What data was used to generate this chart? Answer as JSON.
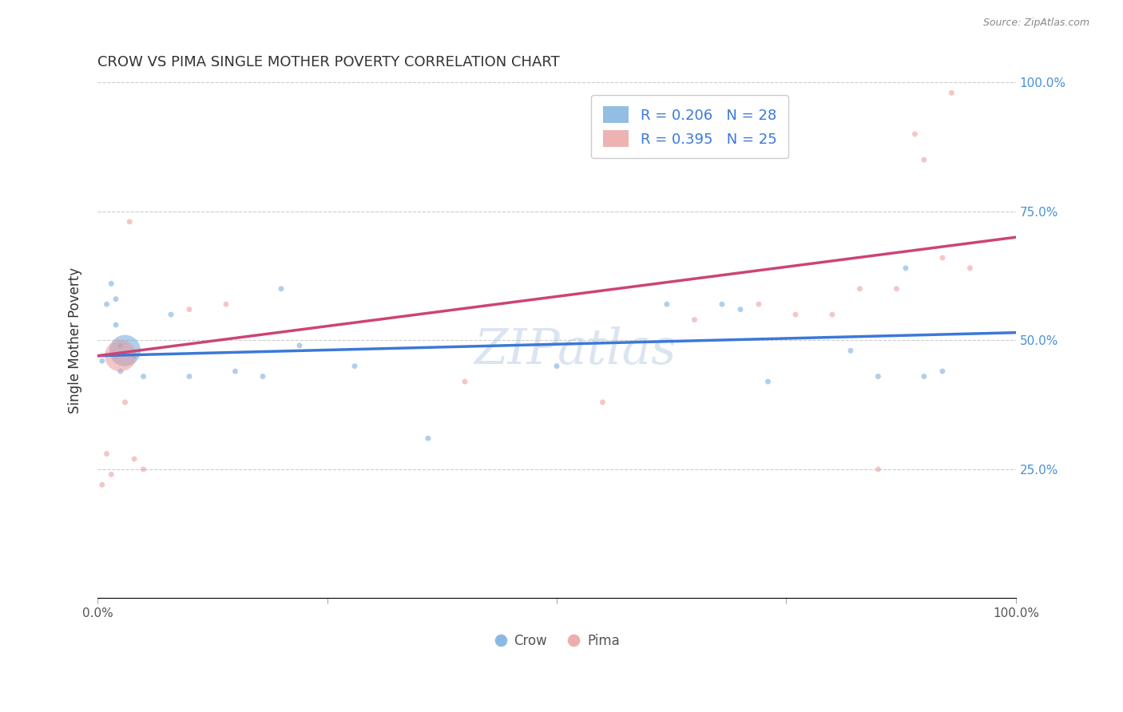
{
  "title": "CROW VS PIMA SINGLE MOTHER POVERTY CORRELATION CHART",
  "source": "Source: ZipAtlas.com",
  "ylabel": "Single Mother Poverty",
  "xlim": [
    0,
    1
  ],
  "ylim": [
    0,
    1
  ],
  "crow_R": 0.206,
  "crow_N": 28,
  "pima_R": 0.395,
  "pima_N": 25,
  "crow_color": "#6fa8dc",
  "pima_color": "#ea9999",
  "crow_line_color": "#3c78d8",
  "pima_line_color": "#cc4477",
  "background_color": "#ffffff",
  "grid_color": "#cccccc",
  "watermark": "ZIPatlas",
  "crow_line_x": [
    0.0,
    1.0
  ],
  "crow_line_y": [
    0.47,
    0.515
  ],
  "pima_line_x": [
    0.0,
    1.0
  ],
  "pima_line_y": [
    0.47,
    0.7
  ],
  "crow_x": [
    0.005,
    0.01,
    0.015,
    0.02,
    0.02,
    0.025,
    0.025,
    0.03,
    0.04,
    0.05,
    0.08,
    0.1,
    0.15,
    0.18,
    0.2,
    0.22,
    0.28,
    0.36,
    0.5,
    0.62,
    0.68,
    0.7,
    0.73,
    0.82,
    0.85,
    0.88,
    0.9,
    0.92
  ],
  "crow_y": [
    0.46,
    0.57,
    0.61,
    0.53,
    0.58,
    0.49,
    0.44,
    0.48,
    0.47,
    0.43,
    0.55,
    0.43,
    0.44,
    0.43,
    0.6,
    0.49,
    0.45,
    0.31,
    0.45,
    0.57,
    0.57,
    0.56,
    0.42,
    0.48,
    0.43,
    0.64,
    0.43,
    0.44
  ],
  "crow_sizes": [
    25,
    25,
    25,
    25,
    25,
    25,
    25,
    800,
    25,
    25,
    25,
    25,
    25,
    25,
    25,
    25,
    25,
    25,
    25,
    25,
    25,
    25,
    25,
    25,
    25,
    25,
    25,
    25
  ],
  "pima_x": [
    0.005,
    0.01,
    0.015,
    0.02,
    0.025,
    0.03,
    0.035,
    0.04,
    0.05,
    0.1,
    0.14,
    0.4,
    0.55,
    0.65,
    0.72,
    0.76,
    0.8,
    0.83,
    0.85,
    0.87,
    0.89,
    0.9,
    0.92,
    0.93,
    0.95
  ],
  "pima_y": [
    0.22,
    0.28,
    0.24,
    0.47,
    0.47,
    0.38,
    0.73,
    0.27,
    0.25,
    0.56,
    0.57,
    0.42,
    0.38,
    0.54,
    0.57,
    0.55,
    0.55,
    0.6,
    0.25,
    0.6,
    0.9,
    0.85,
    0.66,
    0.98,
    0.64
  ],
  "pima_sizes": [
    25,
    25,
    25,
    25,
    800,
    25,
    25,
    25,
    25,
    25,
    25,
    25,
    25,
    25,
    25,
    25,
    25,
    25,
    25,
    25,
    25,
    25,
    25,
    25,
    25
  ]
}
